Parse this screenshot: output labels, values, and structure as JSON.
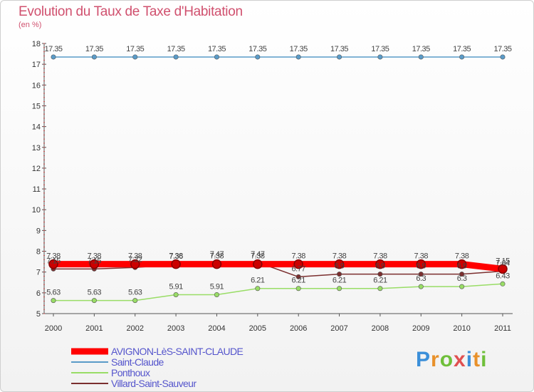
{
  "header": {
    "title": "Evolution du Taux de Taxe d'Habitation",
    "subtitle": "(en %)"
  },
  "logo": {
    "text": "Proxiti",
    "letters": [
      "P",
      "r",
      "o",
      "x",
      "i",
      "t",
      "i"
    ]
  },
  "chart_data": {
    "type": "line",
    "title": "Evolution du Taux de Taxe d'Habitation",
    "ylabel": "(en %)",
    "xlabel": "",
    "ylim": [
      5,
      18
    ],
    "yticks": [
      5,
      6,
      7,
      8,
      9,
      10,
      11,
      12,
      13,
      14,
      15,
      16,
      17,
      18
    ],
    "categories": [
      "2000",
      "2001",
      "2002",
      "2003",
      "2004",
      "2005",
      "2006",
      "2007",
      "2008",
      "2009",
      "2010",
      "2011"
    ],
    "grid": false,
    "legend_position": "bottom-left",
    "series": [
      {
        "name": "Saint-Claude",
        "color": "#5a9bc8",
        "values": [
          17.35,
          17.35,
          17.35,
          17.35,
          17.35,
          17.35,
          17.35,
          17.35,
          17.35,
          17.35,
          17.35,
          17.35
        ],
        "labels": [
          "17.35",
          "17.35",
          "17.35",
          "17.35",
          "17.35",
          "17.35",
          "17.35",
          "17.35",
          "17.35",
          "17.35",
          "17.35",
          "17.35"
        ]
      },
      {
        "name": "Ponthoux",
        "color": "#99dd66",
        "values": [
          5.63,
          5.63,
          5.63,
          5.91,
          5.91,
          6.21,
          6.21,
          6.21,
          6.21,
          6.3,
          6.3,
          6.43
        ],
        "labels": [
          "5.63",
          "5.63",
          "5.63",
          "5.91",
          "5.91",
          "6.21",
          "6.21",
          "6.21",
          "6.21",
          "6.3",
          "6.3",
          "6.43"
        ]
      },
      {
        "name": "Villard-Saint-Sauveur",
        "color": "#7b2f2f",
        "values": [
          7.15,
          7.15,
          7.22,
          7.36,
          7.47,
          7.47,
          6.77,
          6.9,
          6.9,
          6.9,
          6.9,
          7.04
        ],
        "labels": [
          "7.15",
          "7.15",
          "7.22",
          "7.36",
          "7.47",
          "7.47",
          "6.77",
          "6.9",
          "6.9",
          "6.9",
          "6.9",
          "7.04"
        ]
      },
      {
        "name": "AVIGNON-LèS-SAINT-CLAUDE",
        "color": "#ff0000",
        "values": [
          7.38,
          7.38,
          7.38,
          7.38,
          7.38,
          7.38,
          7.38,
          7.38,
          7.38,
          7.38,
          7.38,
          7.15
        ],
        "labels": [
          "7.38",
          "7.38",
          "7.38",
          "7.38",
          "7.38",
          "7.38",
          "7.38",
          "7.38",
          "7.38",
          "7.38",
          "7.38",
          "7.15"
        ]
      }
    ],
    "legend": [
      {
        "name": "AVIGNON-LèS-SAINT-CLAUDE",
        "color": "#ff0000"
      },
      {
        "name": "Saint-Claude",
        "color": "#5a9bc8"
      },
      {
        "name": "Ponthoux",
        "color": "#99dd66"
      },
      {
        "name": "Villard-Saint-Sauveur",
        "color": "#7b2f2f"
      }
    ]
  }
}
